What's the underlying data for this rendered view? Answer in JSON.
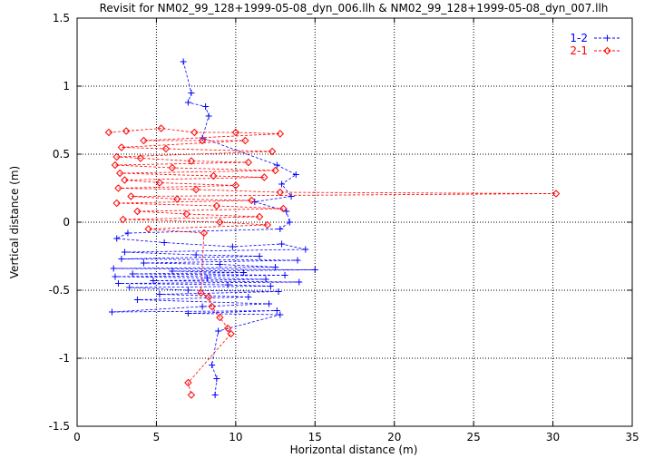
{
  "chart_data": {
    "type": "scatter",
    "title": "Revisit for NM02_99_128+1999-05-08_dyn_006.llh & NM02_99_128+1999-05-08_dyn_007.llh",
    "xlabel": "Horizontal distance (m)",
    "ylabel": "Vertical distance (m)",
    "xlim": [
      0,
      35
    ],
    "ylim": [
      -1.5,
      1.5
    ],
    "xticks": [
      0,
      5,
      10,
      15,
      20,
      25,
      30,
      35
    ],
    "yticks": [
      -1.5,
      -1,
      -0.5,
      0,
      0.5,
      1,
      1.5
    ],
    "xtick_labels": [
      "0",
      "5",
      "10",
      "15",
      "20",
      "25",
      "30",
      "35"
    ],
    "ytick_labels": [
      "-1.5",
      "-1",
      "-0.5",
      "0",
      "0.5",
      "1",
      "1.5"
    ],
    "grid": true,
    "legend_position": "top-right",
    "series": [
      {
        "name": "1-2",
        "color": "#0000ff",
        "marker": "plus",
        "line": "dashed",
        "points": [
          [
            6.7,
            1.18
          ],
          [
            7.2,
            0.95
          ],
          [
            7.0,
            0.88
          ],
          [
            8.1,
            0.85
          ],
          [
            8.3,
            0.78
          ],
          [
            7.9,
            0.62
          ],
          [
            12.6,
            0.42
          ],
          [
            13.8,
            0.35
          ],
          [
            12.9,
            0.28
          ],
          [
            13.5,
            0.19
          ],
          [
            11.2,
            0.15
          ],
          [
            13.2,
            0.08
          ],
          [
            13.4,
            0.0
          ],
          [
            12.8,
            -0.05
          ],
          [
            3.2,
            -0.08
          ],
          [
            2.5,
            -0.12
          ],
          [
            5.5,
            -0.15
          ],
          [
            9.8,
            -0.18
          ],
          [
            12.9,
            -0.16
          ],
          [
            14.4,
            -0.2
          ],
          [
            3.0,
            -0.22
          ],
          [
            7.5,
            -0.24
          ],
          [
            11.5,
            -0.25
          ],
          [
            2.8,
            -0.27
          ],
          [
            13.9,
            -0.28
          ],
          [
            4.2,
            -0.3
          ],
          [
            9.0,
            -0.31
          ],
          [
            12.5,
            -0.33
          ],
          [
            2.3,
            -0.34
          ],
          [
            15.0,
            -0.35
          ],
          [
            6.0,
            -0.36
          ],
          [
            10.5,
            -0.37
          ],
          [
            3.5,
            -0.38
          ],
          [
            13.1,
            -0.39
          ],
          [
            2.4,
            -0.4
          ],
          [
            8.2,
            -0.41
          ],
          [
            11.9,
            -0.42
          ],
          [
            4.8,
            -0.43
          ],
          [
            14.0,
            -0.44
          ],
          [
            2.6,
            -0.45
          ],
          [
            9.5,
            -0.46
          ],
          [
            12.2,
            -0.47
          ],
          [
            3.3,
            -0.48
          ],
          [
            7.0,
            -0.5
          ],
          [
            12.7,
            -0.51
          ],
          [
            5.2,
            -0.53
          ],
          [
            10.8,
            -0.55
          ],
          [
            3.8,
            -0.57
          ],
          [
            12.1,
            -0.6
          ],
          [
            7.9,
            -0.62
          ],
          [
            2.2,
            -0.66
          ],
          [
            12.6,
            -0.65
          ],
          [
            7.0,
            -0.67
          ],
          [
            12.8,
            -0.68
          ],
          [
            8.9,
            -0.8
          ],
          [
            8.5,
            -1.05
          ],
          [
            8.8,
            -1.15
          ],
          [
            8.7,
            -1.27
          ]
        ]
      },
      {
        "name": "2-1",
        "color": "#ff0000",
        "marker": "diamond",
        "line": "dashed",
        "points": [
          [
            2.0,
            0.66
          ],
          [
            3.1,
            0.67
          ],
          [
            5.3,
            0.69
          ],
          [
            7.4,
            0.66
          ],
          [
            10.0,
            0.66
          ],
          [
            12.8,
            0.65
          ],
          [
            4.2,
            0.6
          ],
          [
            7.9,
            0.6
          ],
          [
            10.6,
            0.6
          ],
          [
            2.8,
            0.55
          ],
          [
            5.6,
            0.54
          ],
          [
            12.3,
            0.52
          ],
          [
            2.5,
            0.48
          ],
          [
            4.0,
            0.47
          ],
          [
            7.2,
            0.45
          ],
          [
            10.8,
            0.44
          ],
          [
            2.4,
            0.42
          ],
          [
            6.0,
            0.4
          ],
          [
            12.5,
            0.38
          ],
          [
            2.7,
            0.36
          ],
          [
            8.6,
            0.34
          ],
          [
            11.8,
            0.33
          ],
          [
            3.0,
            0.31
          ],
          [
            5.2,
            0.29
          ],
          [
            10.0,
            0.27
          ],
          [
            2.6,
            0.25
          ],
          [
            7.5,
            0.24
          ],
          [
            12.8,
            0.22
          ],
          [
            30.2,
            0.21
          ],
          [
            3.4,
            0.19
          ],
          [
            6.3,
            0.17
          ],
          [
            11.0,
            0.16
          ],
          [
            2.5,
            0.14
          ],
          [
            8.8,
            0.12
          ],
          [
            13.0,
            0.1
          ],
          [
            3.8,
            0.08
          ],
          [
            6.9,
            0.06
          ],
          [
            11.5,
            0.04
          ],
          [
            2.9,
            0.02
          ],
          [
            9.0,
            0.0
          ],
          [
            12.0,
            -0.02
          ],
          [
            4.5,
            -0.05
          ],
          [
            8.0,
            -0.08
          ],
          [
            7.8,
            -0.52
          ],
          [
            8.3,
            -0.55
          ],
          [
            8.5,
            -0.62
          ],
          [
            9.0,
            -0.7
          ],
          [
            9.5,
            -0.78
          ],
          [
            9.7,
            -0.82
          ],
          [
            7.0,
            -1.18
          ],
          [
            7.2,
            -1.27
          ]
        ]
      }
    ]
  }
}
